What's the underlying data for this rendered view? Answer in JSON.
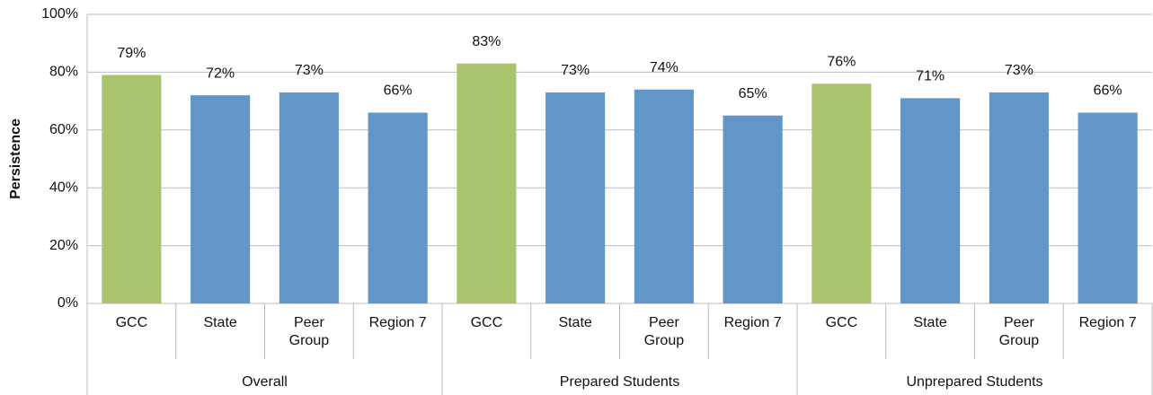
{
  "chart_data": {
    "type": "bar",
    "y_label": "Persistence",
    "categories": [
      "GCC",
      "State",
      "Peer Group",
      "Region 7",
      "GCC",
      "State",
      "Peer Group",
      "Region 7",
      "GCC",
      "State",
      "Peer Group",
      "Region 7"
    ],
    "groups": [
      "Overall",
      "Prepared Students",
      "Unprepared Students"
    ],
    "values": [
      79,
      72,
      73,
      66,
      83,
      73,
      74,
      65,
      76,
      71,
      73,
      66
    ],
    "value_labels": [
      "79%",
      "72%",
      "73%",
      "66%",
      "83%",
      "73%",
      "74%",
      "65%",
      "76%",
      "71%",
      "73%",
      "66%"
    ],
    "colors": [
      "#a9c46c",
      "#6296c8",
      "#6296c8",
      "#6296c8",
      "#a9c46c",
      "#6296c8",
      "#6296c8",
      "#6296c8",
      "#a9c46c",
      "#6296c8",
      "#6296c8",
      "#6296c8"
    ],
    "ylim": [
      0,
      100
    ],
    "yticks": [
      {
        "value": 0,
        "label": "0%"
      },
      {
        "value": 20,
        "label": "20%"
      },
      {
        "value": 40,
        "label": "40%"
      },
      {
        "value": 60,
        "label": "60%"
      },
      {
        "value": 80,
        "label": "80%"
      },
      {
        "value": 100,
        "label": "100%"
      }
    ],
    "grid": true
  }
}
